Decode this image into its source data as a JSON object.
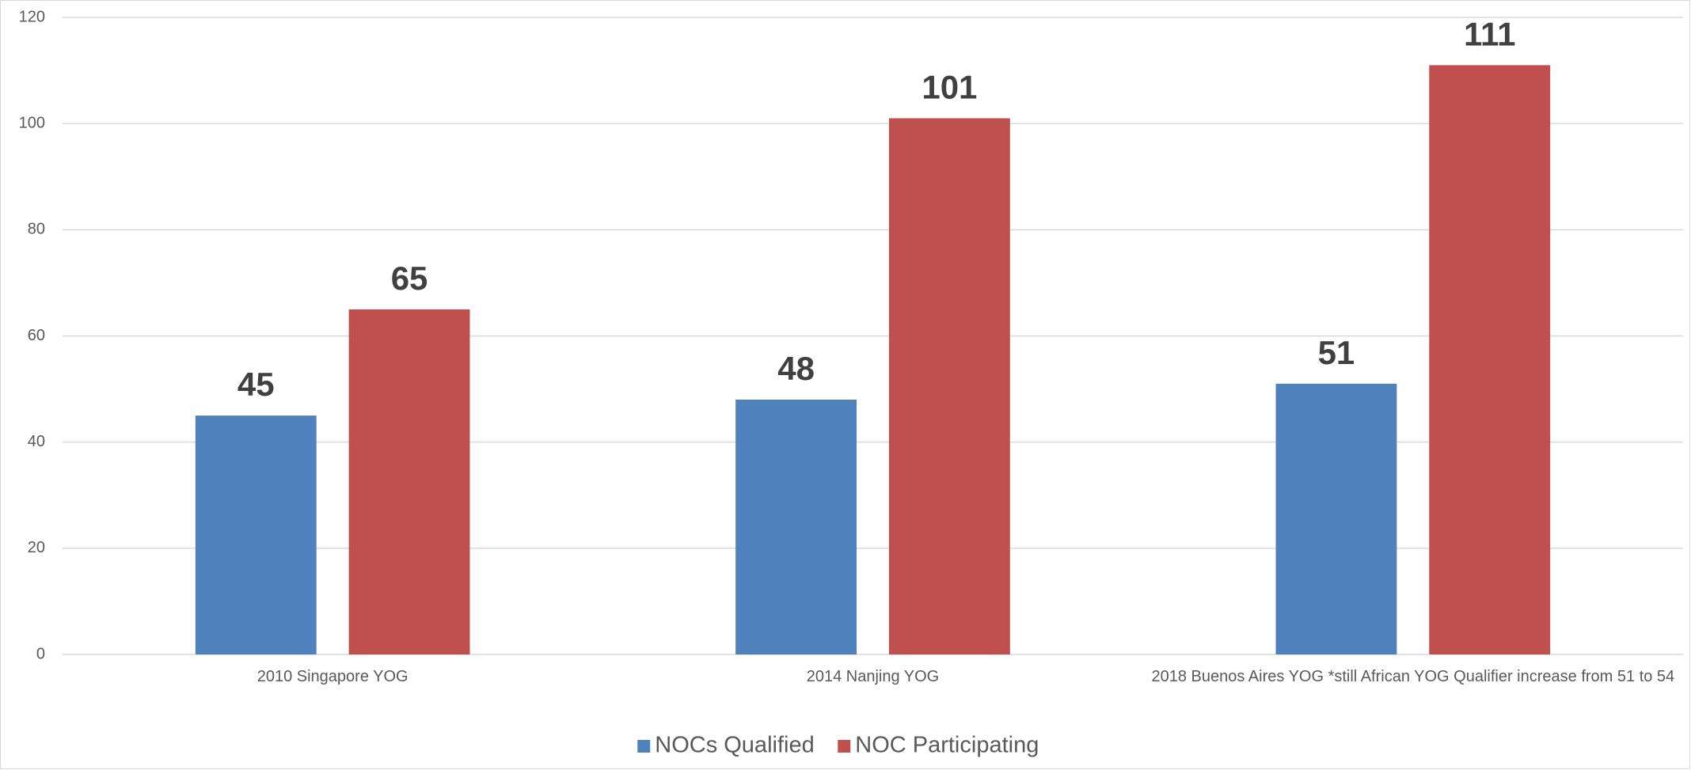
{
  "chart_data": {
    "type": "bar",
    "categories": [
      "2010 Singapore YOG",
      "2014 Nanjing YOG",
      "2018 Buenos Aires YOG *still African YOG Qualifier increase from 51 to 54"
    ],
    "series": [
      {
        "name": "NOCs Qualified",
        "color": "#4f81bd",
        "values": [
          45,
          48,
          51
        ]
      },
      {
        "name": "NOC Participating",
        "color": "#c0504d",
        "values": [
          65,
          101,
          111
        ]
      }
    ],
    "ylim": [
      0,
      120
    ],
    "yticks": [
      0,
      20,
      40,
      60,
      80,
      100,
      120
    ],
    "grid": true,
    "legend": "bottom"
  }
}
